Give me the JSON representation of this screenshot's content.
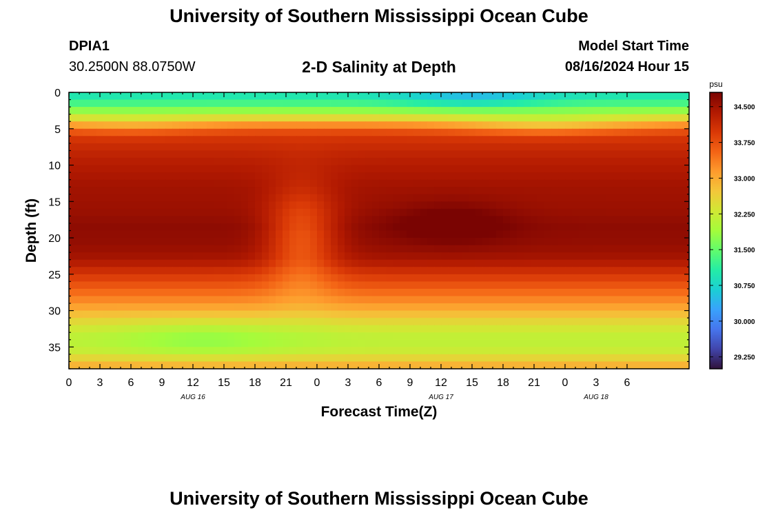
{
  "header": {
    "title": "University of Southern Mississippi Ocean Cube",
    "station_id": "DPIA1",
    "coordinates": "30.2500N  88.0750W",
    "plot_title": "2-D Salinity at Depth",
    "model_start_label": "Model Start Time",
    "model_start_value": "08/16/2024 Hour 15"
  },
  "footer": {
    "title": "University of Southern Mississippi Ocean Cube"
  },
  "chart_data": {
    "type": "heatmap",
    "title": "2-D Salinity at Depth",
    "xlabel": "Forecast Time(Z)",
    "ylabel": "Depth (ft)",
    "x_hours_range": [
      0,
      60
    ],
    "y_depth_range": [
      0,
      38
    ],
    "y_inverted": true,
    "x_ticks": [
      {
        "hour": 0,
        "label": "0"
      },
      {
        "hour": 3,
        "label": "3"
      },
      {
        "hour": 6,
        "label": "6"
      },
      {
        "hour": 9,
        "label": "9"
      },
      {
        "hour": 12,
        "label": "12"
      },
      {
        "hour": 15,
        "label": "15"
      },
      {
        "hour": 18,
        "label": "18"
      },
      {
        "hour": 21,
        "label": "21"
      },
      {
        "hour": 24,
        "label": "0"
      },
      {
        "hour": 27,
        "label": "3"
      },
      {
        "hour": 30,
        "label": "6"
      },
      {
        "hour": 33,
        "label": "9"
      },
      {
        "hour": 36,
        "label": "12"
      },
      {
        "hour": 39,
        "label": "15"
      },
      {
        "hour": 42,
        "label": "18"
      },
      {
        "hour": 45,
        "label": "21"
      },
      {
        "hour": 48,
        "label": "0"
      },
      {
        "hour": 51,
        "label": "3"
      },
      {
        "hour": 54,
        "label": "6"
      }
    ],
    "date_labels": [
      {
        "hour": 12,
        "label": "AUG 16"
      },
      {
        "hour": 36,
        "label": "AUG 17"
      },
      {
        "hour": 51,
        "label": "AUG 18"
      }
    ],
    "y_ticks": [
      0,
      5,
      10,
      15,
      20,
      25,
      30,
      35
    ],
    "colorbar": {
      "unit": "psu",
      "range": [
        29.0,
        34.8
      ],
      "tick_values": [
        29.25,
        30.0,
        30.75,
        31.5,
        32.25,
        33.0,
        33.75,
        34.5
      ],
      "tick_labels": [
        "29.250",
        "30.000",
        "30.750",
        "31.500",
        "32.250",
        "33.000",
        "33.750",
        "34.500"
      ],
      "colors": [
        "#30123b",
        "#4145ab",
        "#4675ed",
        "#39a2fc",
        "#1bcfd4",
        "#24eca6",
        "#61fc6c",
        "#a4fc3b",
        "#d1e834",
        "#f3c63a",
        "#fe9b2d",
        "#f36315",
        "#d93806",
        "#b11901",
        "#7a0402"
      ]
    },
    "depth_profile": [
      {
        "depth": 0,
        "value": 30.9
      },
      {
        "depth": 1,
        "value": 31.1
      },
      {
        "depth": 2,
        "value": 31.5
      },
      {
        "depth": 3,
        "value": 32.1
      },
      {
        "depth": 4,
        "value": 32.9
      },
      {
        "depth": 5,
        "value": 33.6
      },
      {
        "depth": 6,
        "value": 34.0
      },
      {
        "depth": 8,
        "value": 34.2
      },
      {
        "depth": 10,
        "value": 34.35
      },
      {
        "depth": 13,
        "value": 34.5
      },
      {
        "depth": 16,
        "value": 34.55
      },
      {
        "depth": 18.5,
        "value": 34.65
      },
      {
        "depth": 21,
        "value": 34.6
      },
      {
        "depth": 23,
        "value": 34.45
      },
      {
        "depth": 25,
        "value": 34.0
      },
      {
        "depth": 27,
        "value": 33.6
      },
      {
        "depth": 29,
        "value": 33.2
      },
      {
        "depth": 30.5,
        "value": 32.8
      },
      {
        "depth": 32,
        "value": 32.4
      },
      {
        "depth": 34,
        "value": 32.1
      },
      {
        "depth": 36,
        "value": 32.3
      },
      {
        "depth": 37,
        "value": 32.8
      },
      {
        "depth": 38,
        "value": 33.0
      }
    ],
    "anomalies": [
      {
        "hour": 22.5,
        "depth": 20,
        "sigma_hours": 2.4,
        "sigma_depth": 5,
        "delta": -0.9
      },
      {
        "hour": 37,
        "depth": 18,
        "sigma_hours": 4,
        "sigma_depth": 2,
        "delta": 0.35
      },
      {
        "hour": 13,
        "depth": 34,
        "sigma_hours": 6,
        "sigma_depth": 1.8,
        "delta": -0.35
      },
      {
        "hour": 39,
        "depth": 0.5,
        "sigma_hours": 5,
        "sigma_depth": 1.2,
        "delta": -0.5
      },
      {
        "hour": 46,
        "depth": 4.5,
        "sigma_hours": 6,
        "sigma_depth": 1.0,
        "delta": -0.5
      },
      {
        "hour": 6,
        "depth": 4.5,
        "sigma_hours": 5,
        "sigma_depth": 1.0,
        "delta": -0.3
      }
    ]
  }
}
